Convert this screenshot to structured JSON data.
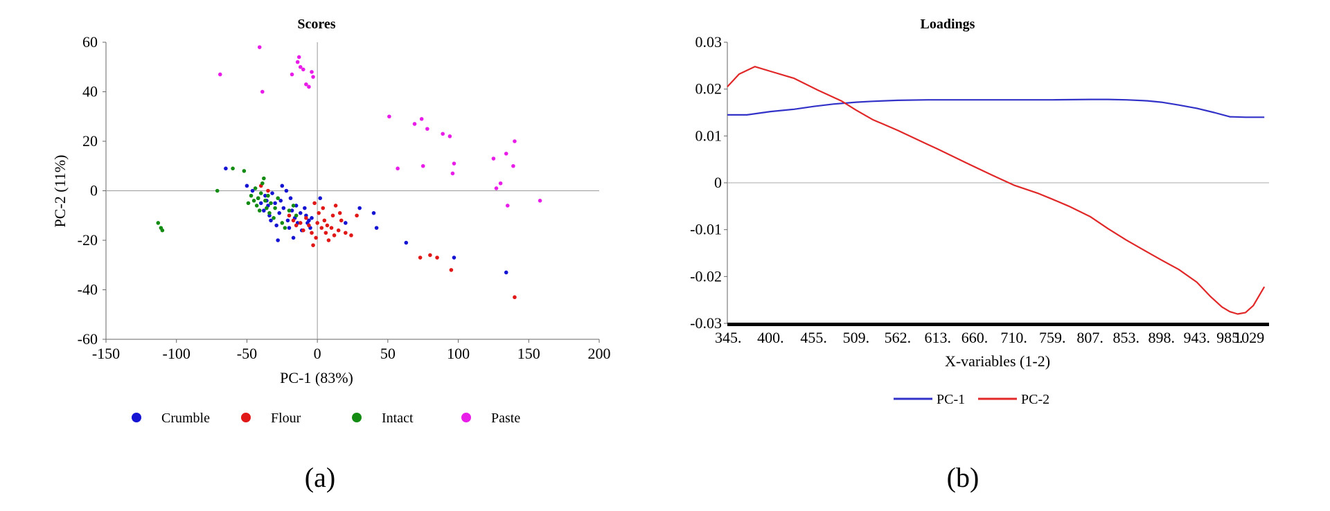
{
  "chart_data": [
    {
      "type": "scatter",
      "title": "Scores",
      "xlabel": "PC-1 (83%)",
      "ylabel": "PC-2 (11%)",
      "xlim": [
        -150,
        200
      ],
      "ylim": [
        -60,
        60
      ],
      "xticks": [
        -150,
        -100,
        -50,
        0,
        50,
        100,
        150,
        200
      ],
      "yticks": [
        -60,
        -40,
        -20,
        0,
        20,
        40,
        60
      ],
      "grid": false,
      "legend_position": "bottom",
      "panel_label": "(a)",
      "series": [
        {
          "name": "Crumble",
          "color": "#1414d2",
          "points": [
            [
              -65,
              9
            ],
            [
              -50,
              2
            ],
            [
              -46,
              0
            ],
            [
              -42,
              -3
            ],
            [
              -40,
              -5
            ],
            [
              -38,
              -8
            ],
            [
              -37,
              -2
            ],
            [
              -36,
              -4
            ],
            [
              -35,
              -6
            ],
            [
              -34,
              -10
            ],
            [
              -33,
              -12
            ],
            [
              -32,
              -1
            ],
            [
              -30,
              -5
            ],
            [
              -29,
              -14
            ],
            [
              -28,
              -20
            ],
            [
              -27,
              -9
            ],
            [
              -26,
              -4
            ],
            [
              -25,
              2
            ],
            [
              -24,
              -7
            ],
            [
              -22,
              0
            ],
            [
              -21,
              -12
            ],
            [
              -20,
              -15
            ],
            [
              -19,
              -3
            ],
            [
              -18,
              -8
            ],
            [
              -17,
              -19
            ],
            [
              -16,
              -11
            ],
            [
              -15,
              -6
            ],
            [
              -14,
              -13
            ],
            [
              -12,
              -9
            ],
            [
              -11,
              -16
            ],
            [
              -9,
              -7
            ],
            [
              -8,
              -10
            ],
            [
              -7,
              -13
            ],
            [
              -6,
              -12
            ],
            [
              -5,
              -15
            ],
            [
              -4,
              -11
            ],
            [
              2,
              -3
            ],
            [
              20,
              -13
            ],
            [
              30,
              -7
            ],
            [
              40,
              -9
            ],
            [
              42,
              -15
            ],
            [
              63,
              -21
            ],
            [
              97,
              -27
            ],
            [
              134,
              -33
            ]
          ]
        },
        {
          "name": "Flour",
          "color": "#e01818",
          "points": [
            [
              -40,
              2
            ],
            [
              -35,
              0
            ],
            [
              -20,
              -10
            ],
            [
              -17,
              -12
            ],
            [
              -15,
              -14
            ],
            [
              -12,
              -13
            ],
            [
              -10,
              -16
            ],
            [
              -8,
              -11
            ],
            [
              -6,
              -14
            ],
            [
              -4,
              -17
            ],
            [
              -3,
              -22
            ],
            [
              -2,
              -5
            ],
            [
              -1,
              -19
            ],
            [
              0,
              -13
            ],
            [
              1,
              -9
            ],
            [
              3,
              -15
            ],
            [
              4,
              -7
            ],
            [
              5,
              -12
            ],
            [
              6,
              -17
            ],
            [
              7,
              -14
            ],
            [
              8,
              -20
            ],
            [
              10,
              -15
            ],
            [
              11,
              -10
            ],
            [
              12,
              -18
            ],
            [
              13,
              -6
            ],
            [
              15,
              -16
            ],
            [
              16,
              -9
            ],
            [
              17,
              -12
            ],
            [
              20,
              -17
            ],
            [
              24,
              -18
            ],
            [
              28,
              -10
            ],
            [
              73,
              -27
            ],
            [
              80,
              -26
            ],
            [
              85,
              -27
            ],
            [
              95,
              -32
            ],
            [
              140,
              -43
            ]
          ]
        },
        {
          "name": "Intact",
          "color": "#148c14",
          "points": [
            [
              -113,
              -13
            ],
            [
              -111,
              -15
            ],
            [
              -110,
              -16
            ],
            [
              -71,
              0
            ],
            [
              -60,
              9
            ],
            [
              -52,
              8
            ],
            [
              -49,
              -5
            ],
            [
              -47,
              -2
            ],
            [
              -45,
              -4
            ],
            [
              -44,
              1
            ],
            [
              -43,
              -6
            ],
            [
              -42,
              -3
            ],
            [
              -41,
              -8
            ],
            [
              -40,
              -1
            ],
            [
              -39,
              3
            ],
            [
              -38,
              5
            ],
            [
              -37,
              -4
            ],
            [
              -36,
              -7
            ],
            [
              -35,
              -2
            ],
            [
              -34,
              -9
            ],
            [
              -33,
              -5
            ],
            [
              -31,
              -11
            ],
            [
              -30,
              -7
            ],
            [
              -28,
              -3
            ],
            [
              -25,
              -13
            ],
            [
              -23,
              -15
            ],
            [
              -20,
              -8
            ],
            [
              -17,
              -6
            ],
            [
              -15,
              -10
            ]
          ]
        },
        {
          "name": "Paste",
          "color": "#e81ee8",
          "points": [
            [
              -69,
              47
            ],
            [
              -41,
              58
            ],
            [
              -39,
              40
            ],
            [
              -18,
              47
            ],
            [
              -14,
              52
            ],
            [
              -13,
              54
            ],
            [
              -12,
              50
            ],
            [
              -10,
              49
            ],
            [
              -8,
              43
            ],
            [
              -6,
              42
            ],
            [
              -4,
              48
            ],
            [
              -3,
              46
            ],
            [
              51,
              30
            ],
            [
              57,
              9
            ],
            [
              69,
              27
            ],
            [
              74,
              29
            ],
            [
              75,
              10
            ],
            [
              78,
              25
            ],
            [
              89,
              23
            ],
            [
              94,
              22
            ],
            [
              96,
              7
            ],
            [
              97,
              11
            ],
            [
              125,
              13
            ],
            [
              127,
              1
            ],
            [
              130,
              3
            ],
            [
              134,
              15
            ],
            [
              135,
              -6
            ],
            [
              139,
              10
            ],
            [
              140,
              20
            ],
            [
              158,
              -4
            ]
          ]
        }
      ]
    },
    {
      "type": "line",
      "title": "Loadings",
      "xlabel": "X-variables (1-2)",
      "ylabel": "",
      "xlim": [
        345,
        1035
      ],
      "ylim": [
        -0.03,
        0.03
      ],
      "xticks": [
        345,
        400,
        455,
        509,
        562,
        613,
        660,
        710,
        759,
        807,
        853,
        898,
        943,
        985,
        1029
      ],
      "xtick_labels": [
        "345.",
        "400.",
        "455.",
        "509.",
        "562.",
        "613.",
        "660.",
        "710.",
        "759.",
        "807.",
        "853.",
        "898.",
        "943.",
        "985.",
        "1029"
      ],
      "yticks": [
        -0.03,
        -0.02,
        -0.01,
        0,
        0.01,
        0.02,
        0.03
      ],
      "ytick_labels": [
        "-0.03",
        "-0.02",
        "-0.01",
        "0",
        "0.01",
        "0.02",
        "0.03"
      ],
      "grid": false,
      "legend_position": "bottom",
      "panel_label": "(b)",
      "series": [
        {
          "name": "PC-1",
          "color": "#3232c8",
          "x": [
            345,
            370,
            400,
            430,
            455,
            480,
            509,
            530,
            562,
            600,
            613,
            660,
            710,
            759,
            807,
            830,
            853,
            880,
            898,
            920,
            943,
            965,
            985,
            1005,
            1029
          ],
          "y": [
            0.0145,
            0.0145,
            0.0152,
            0.0157,
            0.0163,
            0.0168,
            0.0172,
            0.0174,
            0.0176,
            0.0177,
            0.0177,
            0.0177,
            0.0177,
            0.0177,
            0.0178,
            0.0178,
            0.0177,
            0.0175,
            0.0172,
            0.0166,
            0.0159,
            0.015,
            0.0141,
            0.014,
            0.014
          ]
        },
        {
          "name": "PC-2",
          "color": "#e02828",
          "x": [
            345,
            360,
            380,
            400,
            430,
            460,
            490,
            509,
            530,
            562,
            600,
            613,
            650,
            680,
            710,
            740,
            759,
            780,
            807,
            830,
            853,
            880,
            898,
            920,
            943,
            960,
            975,
            985,
            995,
            1005,
            1015,
            1029
          ],
          "y": [
            0.0205,
            0.0232,
            0.0248,
            0.0238,
            0.0223,
            0.0198,
            0.0175,
            0.0155,
            0.0135,
            0.0112,
            0.0082,
            0.0072,
            0.0042,
            0.0018,
            -0.0005,
            -0.0022,
            -0.0035,
            -0.005,
            -0.0072,
            -0.0098,
            -0.0122,
            -0.0148,
            -0.0165,
            -0.0185,
            -0.0212,
            -0.0242,
            -0.0265,
            -0.0275,
            -0.028,
            -0.0277,
            -0.0262,
            -0.0222
          ]
        }
      ]
    }
  ]
}
